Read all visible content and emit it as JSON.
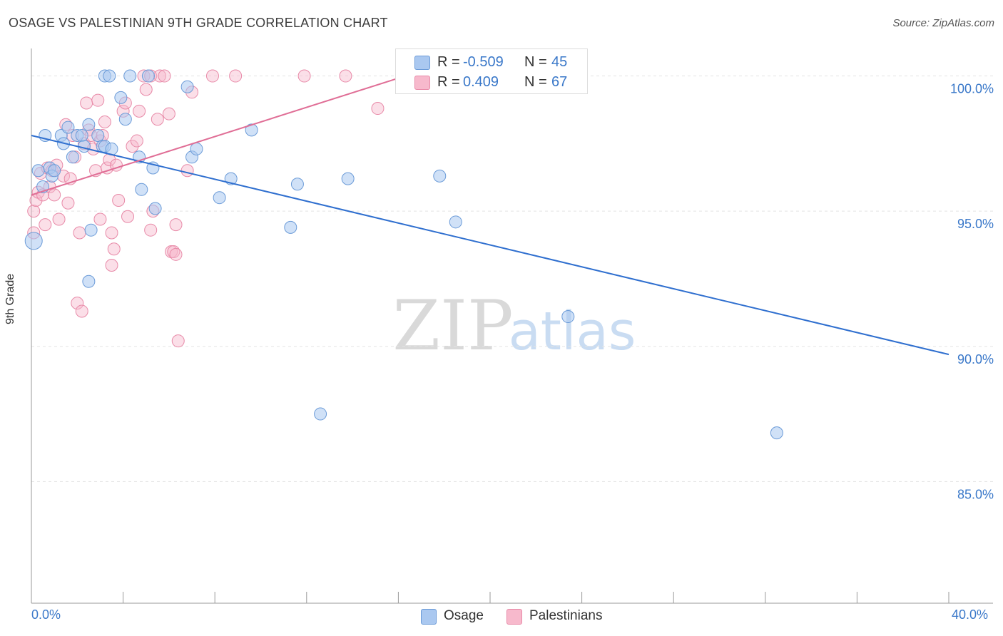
{
  "header": {
    "title": "OSAGE VS PALESTINIAN 9TH GRADE CORRELATION CHART",
    "source": "Source: ZipAtlas.com"
  },
  "watermark": {
    "zip": "ZIP",
    "atlas": "atlas"
  },
  "colors": {
    "osage_fill": "#aac8f0",
    "osage_stroke": "#6b9bd8",
    "osage_line": "#2f6fcf",
    "pal_fill": "#f7b9cc",
    "pal_stroke": "#e88aa8",
    "pal_line": "#e06e96",
    "axis_text": "#3a78c9",
    "grid": "#e3e3e3"
  },
  "stats": {
    "osage": {
      "r_label": "R =",
      "r_value": "-0.509",
      "n_label": "N =",
      "n_value": "45"
    },
    "palestinians": {
      "r_label": "R =",
      "r_value": "0.409",
      "n_label": "N =",
      "n_value": "67"
    }
  },
  "legend": {
    "osage": "Osage",
    "palestinians": "Palestinians"
  },
  "chart_data": {
    "type": "scatter",
    "title": "OSAGE VS PALESTINIAN 9TH GRADE CORRELATION CHART",
    "xlabel": "",
    "ylabel": "9th Grade",
    "xlim": [
      0,
      40
    ],
    "ylim": [
      80.5,
      100.7
    ],
    "x_tick_labels": [
      "0.0%",
      "40.0%"
    ],
    "y_ticks": [
      85,
      90,
      95,
      100
    ],
    "y_tick_labels": [
      "85.0%",
      "90.0%",
      "95.0%",
      "100.0%"
    ],
    "grid": true,
    "series": [
      {
        "name": "Osage",
        "trend": {
          "x": [
            0,
            40
          ],
          "y": [
            97.8,
            89.7
          ]
        },
        "points": [
          [
            0.1,
            93.9
          ],
          [
            0.3,
            96.5
          ],
          [
            0.5,
            95.9
          ],
          [
            0.6,
            97.8
          ],
          [
            0.8,
            96.6
          ],
          [
            0.9,
            96.3
          ],
          [
            1.0,
            96.5
          ],
          [
            1.3,
            97.8
          ],
          [
            1.4,
            97.5
          ],
          [
            1.6,
            98.1
          ],
          [
            1.8,
            97.0
          ],
          [
            2.0,
            97.8
          ],
          [
            2.2,
            97.8
          ],
          [
            2.3,
            97.4
          ],
          [
            2.5,
            98.2
          ],
          [
            2.6,
            94.3
          ],
          [
            2.5,
            92.4
          ],
          [
            2.9,
            97.8
          ],
          [
            3.1,
            97.4
          ],
          [
            3.2,
            97.4
          ],
          [
            3.2,
            100.0
          ],
          [
            3.4,
            100.0
          ],
          [
            3.5,
            97.3
          ],
          [
            3.9,
            99.2
          ],
          [
            4.1,
            98.4
          ],
          [
            4.3,
            100.0
          ],
          [
            4.7,
            97.0
          ],
          [
            4.8,
            95.8
          ],
          [
            5.1,
            100.0
          ],
          [
            5.3,
            96.6
          ],
          [
            5.4,
            95.1
          ],
          [
            6.8,
            99.6
          ],
          [
            7.0,
            97.0
          ],
          [
            7.2,
            97.3
          ],
          [
            8.2,
            95.5
          ],
          [
            8.7,
            96.2
          ],
          [
            9.6,
            98.0
          ],
          [
            11.3,
            94.4
          ],
          [
            11.6,
            96.0
          ],
          [
            12.6,
            87.5
          ],
          [
            13.8,
            96.2
          ],
          [
            17.8,
            96.3
          ],
          [
            18.5,
            94.6
          ],
          [
            23.4,
            91.1
          ],
          [
            32.5,
            86.8
          ]
        ]
      },
      {
        "name": "Palestinians",
        "trend": {
          "x": [
            0,
            16.3
          ],
          "y": [
            95.6,
            100.0
          ]
        },
        "points": [
          [
            0.1,
            94.2
          ],
          [
            0.1,
            95.0
          ],
          [
            0.2,
            95.4
          ],
          [
            0.3,
            95.7
          ],
          [
            0.4,
            96.4
          ],
          [
            0.5,
            95.6
          ],
          [
            0.6,
            94.5
          ],
          [
            0.7,
            96.6
          ],
          [
            0.8,
            95.9
          ],
          [
            0.9,
            96.5
          ],
          [
            1.0,
            95.6
          ],
          [
            1.1,
            96.7
          ],
          [
            1.2,
            94.7
          ],
          [
            1.4,
            96.3
          ],
          [
            1.5,
            98.2
          ],
          [
            1.6,
            95.3
          ],
          [
            1.7,
            96.2
          ],
          [
            1.8,
            97.8
          ],
          [
            1.9,
            97.0
          ],
          [
            2.0,
            91.6
          ],
          [
            2.1,
            94.2
          ],
          [
            2.2,
            91.3
          ],
          [
            2.3,
            97.5
          ],
          [
            2.4,
            99.0
          ],
          [
            2.5,
            98.0
          ],
          [
            2.6,
            97.8
          ],
          [
            2.7,
            97.3
          ],
          [
            2.8,
            96.5
          ],
          [
            2.9,
            99.1
          ],
          [
            3.0,
            97.6
          ],
          [
            3.1,
            97.8
          ],
          [
            3.0,
            94.7
          ],
          [
            3.2,
            98.3
          ],
          [
            3.3,
            96.6
          ],
          [
            3.4,
            96.9
          ],
          [
            3.5,
            94.2
          ],
          [
            3.5,
            93.0
          ],
          [
            3.6,
            93.6
          ],
          [
            3.7,
            96.7
          ],
          [
            3.8,
            95.4
          ],
          [
            4.0,
            98.7
          ],
          [
            4.1,
            99.0
          ],
          [
            4.2,
            94.8
          ],
          [
            4.4,
            97.4
          ],
          [
            4.6,
            97.6
          ],
          [
            4.7,
            98.7
          ],
          [
            4.9,
            100.0
          ],
          [
            5.0,
            99.5
          ],
          [
            5.2,
            100.0
          ],
          [
            5.2,
            94.3
          ],
          [
            5.3,
            95.0
          ],
          [
            5.5,
            98.4
          ],
          [
            5.6,
            100.0
          ],
          [
            5.8,
            100.0
          ],
          [
            6.0,
            98.6
          ],
          [
            6.1,
            93.5
          ],
          [
            6.2,
            93.5
          ],
          [
            6.3,
            94.5
          ],
          [
            6.4,
            90.2
          ],
          [
            6.8,
            96.5
          ],
          [
            7.0,
            99.4
          ],
          [
            7.9,
            100.0
          ],
          [
            8.9,
            100.0
          ],
          [
            11.9,
            100.0
          ],
          [
            13.7,
            100.0
          ],
          [
            15.1,
            98.8
          ],
          [
            6.3,
            93.4
          ]
        ]
      }
    ]
  }
}
